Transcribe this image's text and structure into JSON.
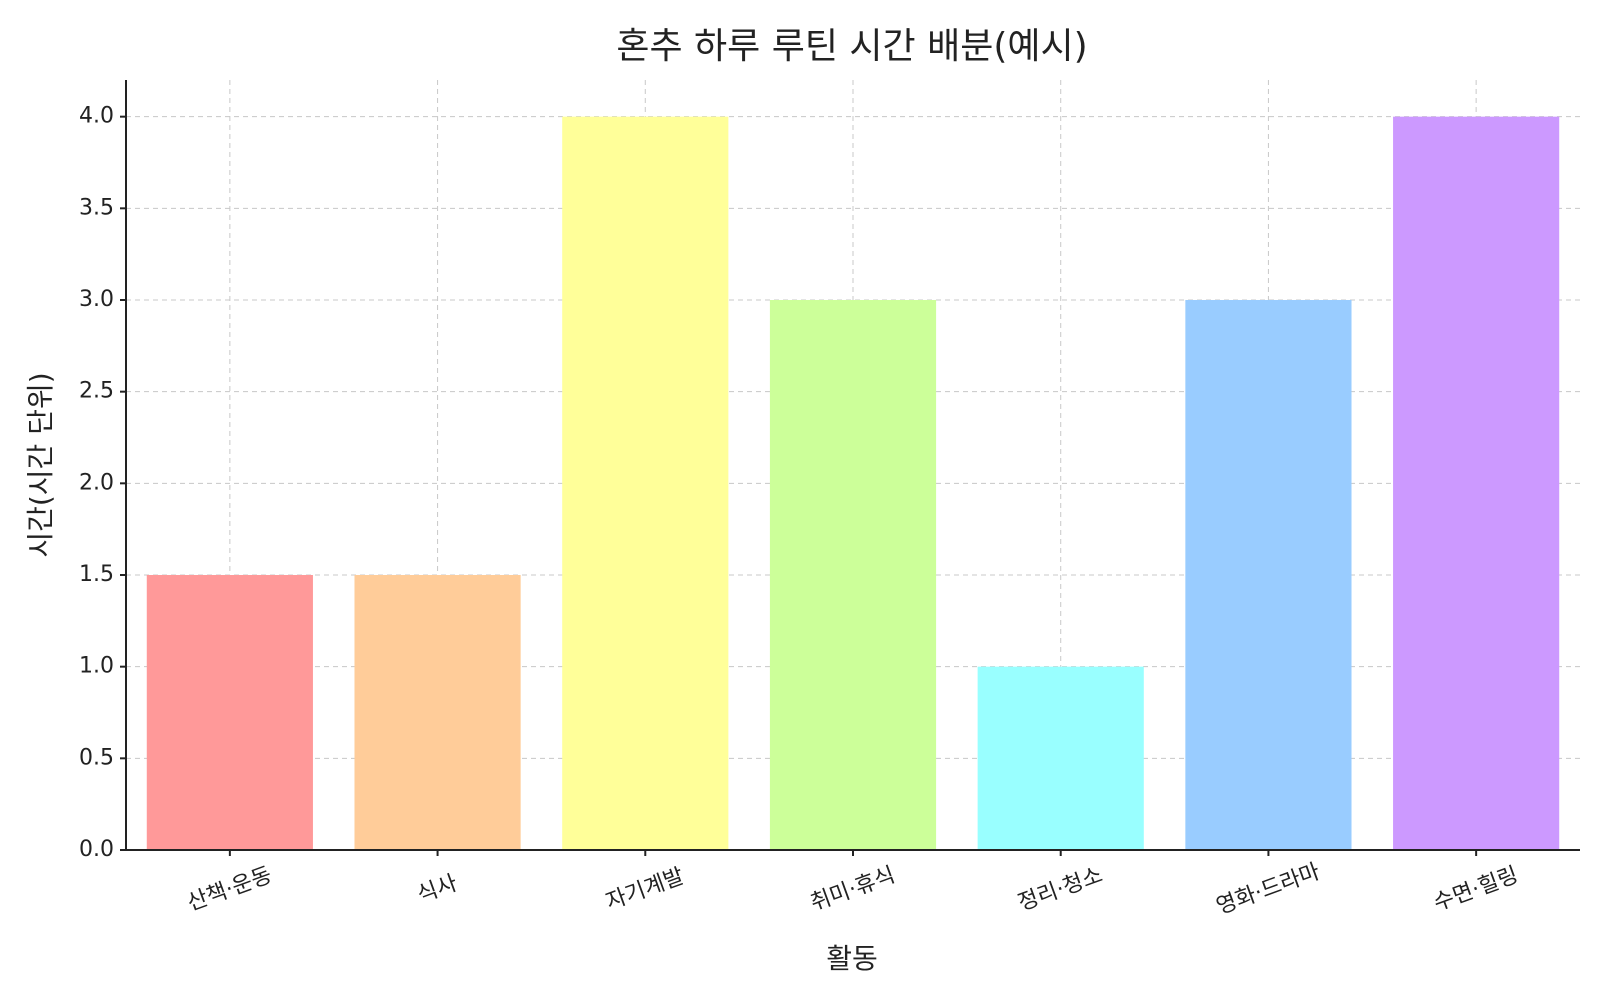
{
  "chart_data": {
    "type": "bar",
    "title": "혼추 하루 루틴 시간 배분(예시)",
    "x_label": "활동",
    "y_label": "시간(시간 단위)",
    "categories": [
      "산책·운동",
      "식사",
      "자기계발",
      "취미·휴식",
      "정리·청소",
      "영화·드라마",
      "수면·힐링"
    ],
    "values": [
      1.5,
      1.5,
      4,
      3,
      1,
      3,
      4
    ],
    "colors": [
      "#ff9999",
      "#ffcc99",
      "#ffff99",
      "#ccff99",
      "#99ffff",
      "#99ccff",
      "#cc99ff"
    ],
    "ylim": [
      0,
      4.2
    ],
    "yticks": [
      {
        "value": 0,
        "label": "0.0"
      },
      0.5,
      {
        "value": 1,
        "label": "1.0"
      },
      1.5,
      {
        "value": 2,
        "label": "2.0"
      },
      2.5,
      {
        "value": 3,
        "label": "3.0"
      },
      3.5,
      {
        "value": 4,
        "label": "4.0"
      }
    ],
    "grid": true
  }
}
